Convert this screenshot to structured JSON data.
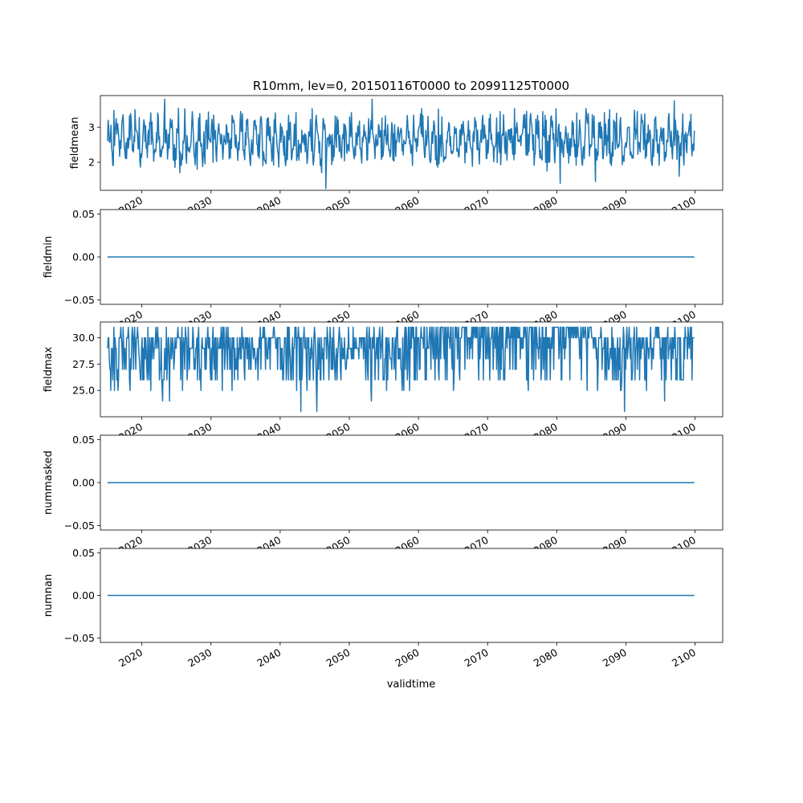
{
  "figure": {
    "title": "R10mm, lev=0, 20150116T0000 to 20991125T0000",
    "xlabel": "validtime"
  },
  "style": {
    "line_color": "#1f77b4",
    "axes_color": "#000000",
    "background": "#ffffff"
  },
  "chart_data": [
    {
      "type": "line",
      "name": "fieldmean",
      "ylabel": "fieldmean",
      "xlim": [
        2014.0,
        2104.0
      ],
      "ylim": [
        1.2,
        3.9
      ],
      "yticks": [
        2,
        3
      ],
      "ytick_labels": [
        "2",
        "3"
      ],
      "x_start": 2015.04,
      "x_end": 2099.9,
      "n_points": 1019,
      "samples": [
        {
          "x": 2015.04,
          "y": 2.6
        },
        {
          "x": 2016.5,
          "y": 3.1
        },
        {
          "x": 2019.0,
          "y": 3.5
        },
        {
          "x": 2023.3,
          "y": 3.8
        },
        {
          "x": 2025.5,
          "y": 1.7
        },
        {
          "x": 2028.0,
          "y": 1.8
        },
        {
          "x": 2037.5,
          "y": 1.9
        },
        {
          "x": 2046.0,
          "y": 1.7
        },
        {
          "x": 2046.6,
          "y": 1.25
        },
        {
          "x": 2053.3,
          "y": 3.8
        },
        {
          "x": 2078.6,
          "y": 1.75
        },
        {
          "x": 2080.5,
          "y": 1.4
        },
        {
          "x": 2085.6,
          "y": 1.45
        },
        {
          "x": 2097.0,
          "y": 3.75
        },
        {
          "x": 2097.7,
          "y": 1.6
        },
        {
          "x": 2099.9,
          "y": 2.9
        }
      ]
    },
    {
      "type": "line",
      "name": "fieldmin",
      "ylabel": "fieldmin",
      "xlim": [
        2014.0,
        2104.0
      ],
      "ylim": [
        -0.055,
        0.055
      ],
      "yticks": [
        -0.05,
        0.0,
        0.05
      ],
      "ytick_labels": [
        "−0.05",
        "0.00",
        "0.05"
      ],
      "x": [
        2015.04,
        2099.9
      ],
      "y": [
        0.0,
        0.0
      ]
    },
    {
      "type": "line",
      "name": "fieldmax",
      "ylabel": "fieldmax",
      "xlim": [
        2014.0,
        2104.0
      ],
      "ylim": [
        22.5,
        31.5
      ],
      "yticks": [
        25.0,
        27.5,
        30.0
      ],
      "ytick_labels": [
        "25.0",
        "27.5",
        "30.0"
      ],
      "x_start": 2015.04,
      "x_end": 2099.9,
      "n_points": 1019,
      "samples": [
        {
          "x": 2015.04,
          "y": 29
        },
        {
          "x": 2015.5,
          "y": 25
        },
        {
          "x": 2023.0,
          "y": 24
        },
        {
          "x": 2024.0,
          "y": 24
        },
        {
          "x": 2043.0,
          "y": 23
        },
        {
          "x": 2045.3,
          "y": 23
        },
        {
          "x": 2053.2,
          "y": 24
        },
        {
          "x": 2065.0,
          "y": 31
        },
        {
          "x": 2089.8,
          "y": 23
        },
        {
          "x": 2095.6,
          "y": 24
        },
        {
          "x": 2099.9,
          "y": 30
        }
      ]
    },
    {
      "type": "line",
      "name": "nummasked",
      "ylabel": "nummasked",
      "xlim": [
        2014.0,
        2104.0
      ],
      "ylim": [
        -0.055,
        0.055
      ],
      "yticks": [
        -0.05,
        0.0,
        0.05
      ],
      "ytick_labels": [
        "−0.05",
        "0.00",
        "0.05"
      ],
      "x": [
        2015.04,
        2099.9
      ],
      "y": [
        0.0,
        0.0
      ]
    },
    {
      "type": "line",
      "name": "numnan",
      "ylabel": "numnan",
      "xlim": [
        2014.0,
        2104.0
      ],
      "ylim": [
        -0.055,
        0.055
      ],
      "yticks": [
        -0.05,
        0.0,
        0.05
      ],
      "ytick_labels": [
        "−0.05",
        "0.00",
        "0.05"
      ],
      "x": [
        2015.04,
        2099.9
      ],
      "y": [
        0.0,
        0.0
      ]
    }
  ],
  "x_axis": {
    "ticks": [
      2020,
      2030,
      2040,
      2050,
      2060,
      2070,
      2080,
      2090,
      2100
    ],
    "tick_labels": [
      "2020",
      "2030",
      "2040",
      "2050",
      "2060",
      "2070",
      "2080",
      "2090",
      "2100"
    ]
  }
}
